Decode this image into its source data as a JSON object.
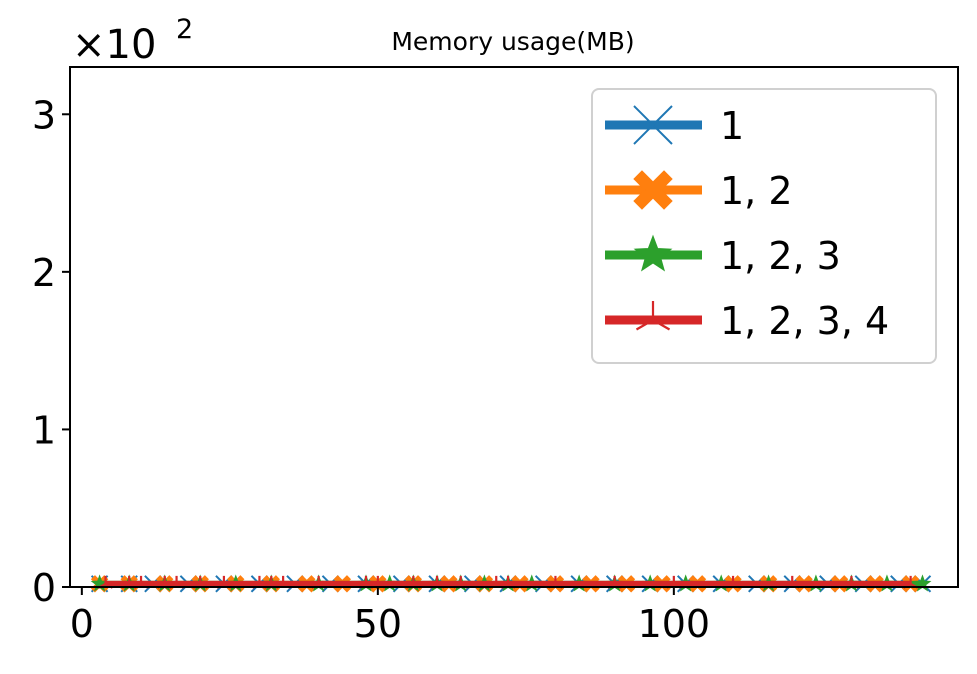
{
  "chart_data": {
    "type": "line",
    "title": "Memory usage(MB)",
    "xlabel": "",
    "ylabel": "",
    "xlim": [
      -2,
      148
    ],
    "ylim": [
      0,
      330
    ],
    "x_ticks": [
      0,
      50,
      100
    ],
    "x_tick_labels": [
      "0",
      "50",
      "100"
    ],
    "y_ticks": [
      0,
      100,
      200,
      300
    ],
    "y_tick_labels": [
      "0",
      "1",
      "2",
      "3"
    ],
    "y_offset_label": "×10",
    "y_offset_exponent": "2",
    "grid": false,
    "legend_position": "upper right",
    "series": [
      {
        "name": "1",
        "color": "#1f77b4",
        "marker": "x",
        "x": [
          3,
          8,
          12,
          18,
          24,
          30,
          36,
          42,
          48,
          54,
          60,
          66,
          72,
          78,
          84,
          90,
          96,
          102,
          108,
          114,
          120,
          126,
          132,
          138,
          142
        ],
        "y": [
          2,
          2,
          2,
          2,
          2,
          2,
          2,
          2,
          2,
          2,
          2,
          2,
          2,
          2,
          2,
          2,
          2,
          2,
          2,
          2,
          2,
          2,
          2,
          2,
          2
        ]
      },
      {
        "name": "1, 2",
        "color": "#ff7f0e",
        "marker": "X",
        "x": [
          3,
          8,
          14,
          20,
          26,
          32,
          38,
          44,
          50,
          56,
          62,
          68,
          74,
          80,
          86,
          92,
          98,
          104,
          110,
          116,
          122,
          128,
          134,
          140
        ],
        "y": [
          2,
          2,
          2,
          2,
          2,
          2,
          2,
          2,
          2,
          2,
          2,
          2,
          2,
          2,
          2,
          2,
          2,
          2,
          2,
          2,
          2,
          2,
          2,
          2
        ]
      },
      {
        "name": "1, 2, 3",
        "color": "#2ca02c",
        "marker": "*",
        "x": [
          3,
          8,
          14,
          20,
          26,
          32,
          40,
          48,
          52,
          56,
          60,
          64,
          68,
          72,
          76,
          84,
          90,
          96,
          102,
          108,
          116,
          124,
          130,
          136,
          142
        ],
        "y": [
          2,
          2,
          2,
          2,
          2,
          2,
          2,
          2,
          2,
          2,
          2,
          2,
          2,
          2,
          2,
          2,
          2,
          2,
          2,
          2,
          2,
          2,
          2,
          2,
          2
        ]
      },
      {
        "name": "1, 2, 3, 4",
        "color": "#d62728",
        "marker": "tri_up",
        "x": [
          4,
          8,
          10,
          14,
          16,
          20,
          24,
          30,
          32,
          34,
          40,
          48,
          50,
          56,
          60,
          64,
          70,
          72,
          80,
          90,
          100,
          110,
          120,
          130,
          140
        ],
        "y": [
          2,
          2,
          2,
          2,
          2,
          2,
          2,
          2,
          2,
          2,
          2,
          2,
          2,
          2,
          2,
          2,
          2,
          2,
          2,
          2,
          2,
          2,
          2,
          2,
          2
        ]
      }
    ]
  }
}
